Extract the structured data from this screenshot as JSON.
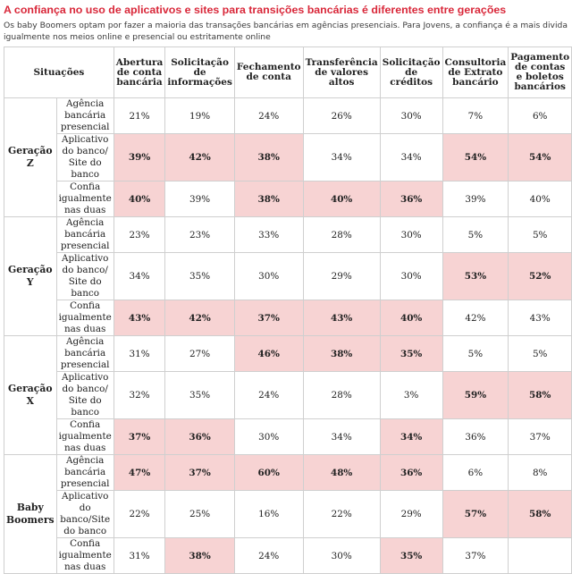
{
  "title": "A confiança no uso de aplicativos e sites para transições bancárias é diferentes entre gerações",
  "subtitle": "Os baby Boomers optam por fazer a maioria das transações bancárias em agências presenciais. Para Jovens, a confiança é a mais divida igualmente nos meios online e presencial ou estritamente online",
  "colors": {
    "accent": "#d9283a",
    "highlight": "#f7d3d3",
    "border": "#cfcfcf"
  },
  "table": {
    "columns": [
      "Situações",
      "Abertura de conta bancária",
      "Solicitação de informações",
      "Fechamento de conta",
      "Transferência de valores altos",
      "Solicitação de créditos",
      "Consultoria de Extrato bancário",
      "Pagamento de contas e boletos bancários"
    ],
    "groups": [
      {
        "name": "Geração Z",
        "rows": [
          {
            "situation": "Agência bancária presencial",
            "values": [
              "21%",
              "19%",
              "24%",
              "26%",
              "30%",
              "7%",
              "6%"
            ],
            "highlight": [
              false,
              false,
              false,
              false,
              false,
              false,
              false
            ]
          },
          {
            "situation": "Aplicativo do banco/ Site do banco",
            "values": [
              "39%",
              "42%",
              "38%",
              "34%",
              "34%",
              "54%",
              "54%"
            ],
            "highlight": [
              true,
              true,
              true,
              false,
              false,
              true,
              true
            ]
          },
          {
            "situation": "Confia igualmente nas duas",
            "values": [
              "40%",
              "39%",
              "38%",
              "40%",
              "36%",
              "39%",
              "40%"
            ],
            "highlight": [
              true,
              false,
              true,
              true,
              true,
              false,
              false
            ]
          }
        ]
      },
      {
        "name": "Geração Y",
        "rows": [
          {
            "situation": "Agência bancária presencial",
            "values": [
              "23%",
              "23%",
              "33%",
              "28%",
              "30%",
              "5%",
              "5%"
            ],
            "highlight": [
              false,
              false,
              false,
              false,
              false,
              false,
              false
            ]
          },
          {
            "situation": "Aplicativo do banco/ Site do banco",
            "values": [
              "34%",
              "35%",
              "30%",
              "29%",
              "30%",
              "53%",
              "52%"
            ],
            "highlight": [
              false,
              false,
              false,
              false,
              false,
              true,
              true
            ]
          },
          {
            "situation": "Confia igualmente nas duas",
            "values": [
              "43%",
              "42%",
              "37%",
              "43%",
              "40%",
              "42%",
              "43%"
            ],
            "highlight": [
              true,
              true,
              true,
              true,
              true,
              false,
              false
            ]
          }
        ]
      },
      {
        "name": "Geração X",
        "rows": [
          {
            "situation": "Agência bancária presencial",
            "values": [
              "31%",
              "27%",
              "46%",
              "38%",
              "35%",
              "5%",
              "5%"
            ],
            "highlight": [
              false,
              false,
              true,
              true,
              true,
              false,
              false
            ]
          },
          {
            "situation": "Aplicativo do banco/ Site do banco",
            "values": [
              "32%",
              "35%",
              "24%",
              "28%",
              "3%",
              "59%",
              "58%"
            ],
            "highlight": [
              false,
              false,
              false,
              false,
              false,
              true,
              true
            ]
          },
          {
            "situation": "Confia igualmente nas duas",
            "values": [
              "37%",
              "36%",
              "30%",
              "34%",
              "34%",
              "36%",
              "37%"
            ],
            "highlight": [
              true,
              true,
              false,
              false,
              true,
              false,
              false
            ]
          }
        ]
      },
      {
        "name": "Baby Boomers",
        "rows": [
          {
            "situation": "Agência bancária presencial",
            "values": [
              "47%",
              "37%",
              "60%",
              "48%",
              "36%",
              "6%",
              "8%"
            ],
            "highlight": [
              true,
              true,
              true,
              true,
              true,
              false,
              false
            ]
          },
          {
            "situation": "Aplicativo do banco/Site do banco",
            "values": [
              "22%",
              "25%",
              "16%",
              "22%",
              "29%",
              "57%",
              "58%"
            ],
            "highlight": [
              false,
              false,
              false,
              false,
              false,
              true,
              true
            ]
          },
          {
            "situation": "Confia igualmente nas duas",
            "values": [
              "31%",
              "38%",
              "24%",
              "30%",
              "35%",
              "37%",
              ""
            ],
            "highlight": [
              false,
              true,
              false,
              false,
              true,
              false,
              false
            ]
          }
        ]
      }
    ]
  }
}
